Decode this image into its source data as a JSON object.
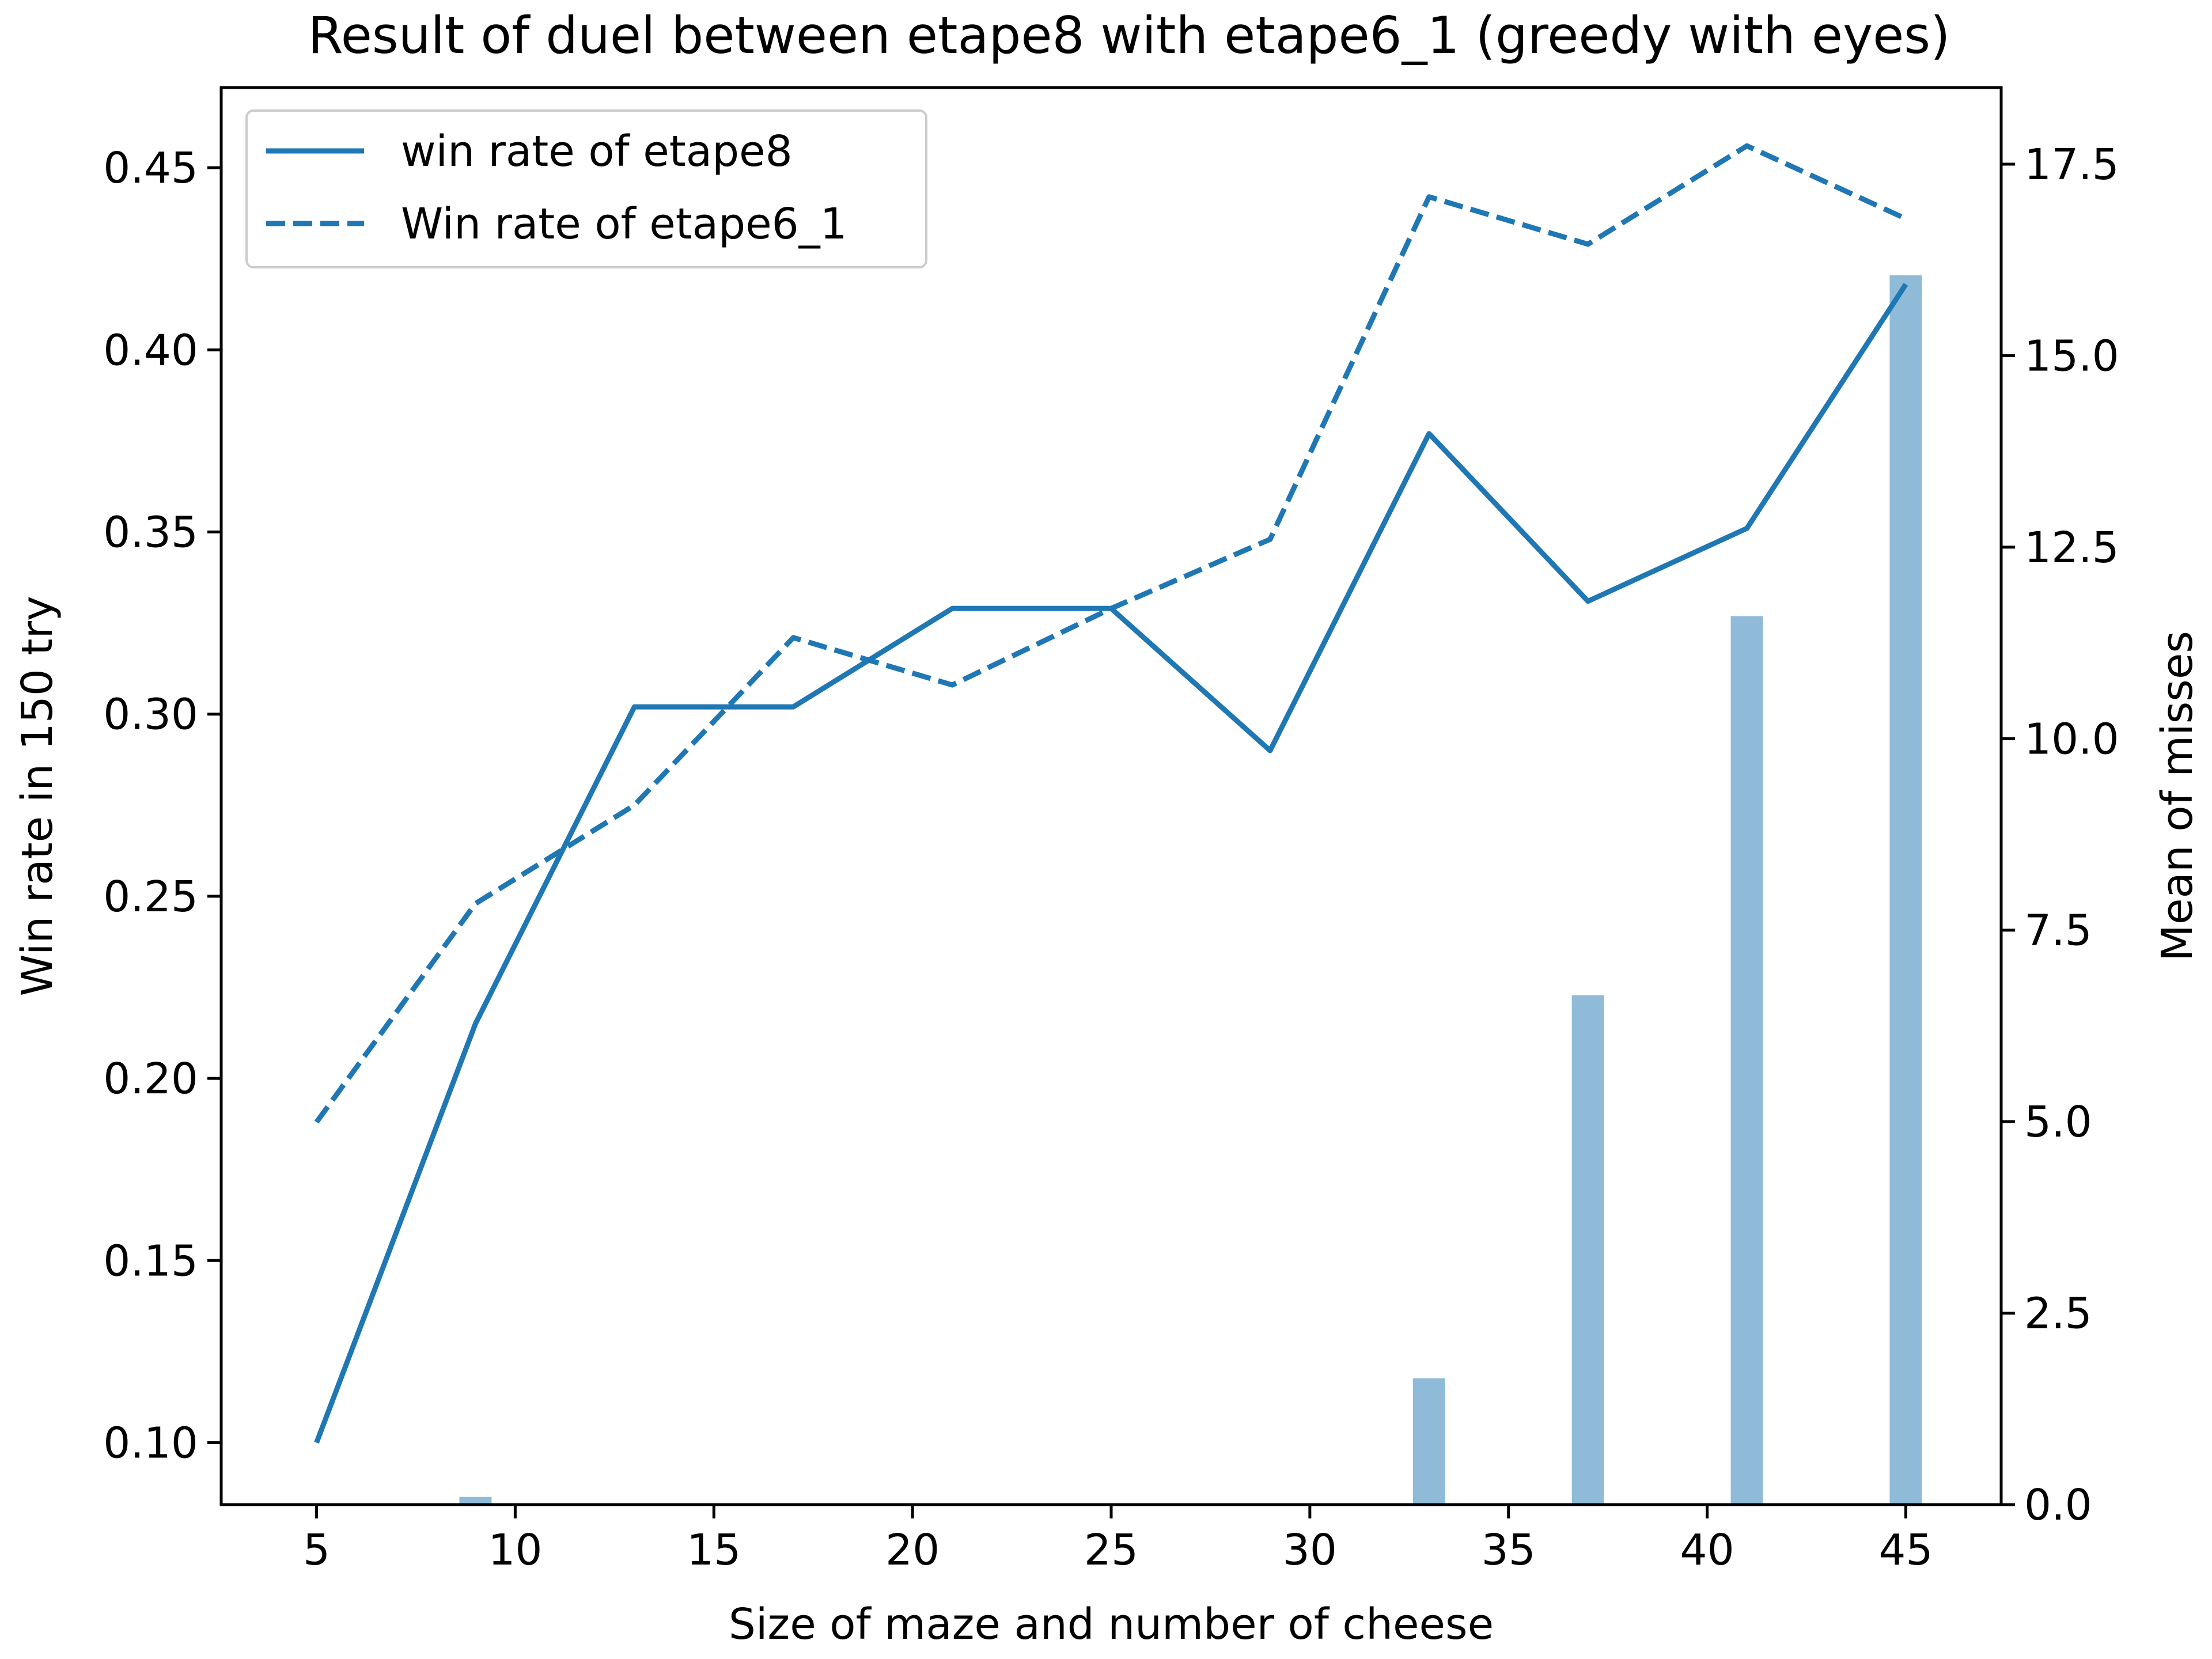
{
  "chart_data": {
    "type": "line",
    "title": "Result of duel between etape8 with etape6_1 (greedy with eyes)",
    "xlabel": "Size of maze and number of cheese",
    "ylabel": "Win rate in 150 try",
    "y2label": "Mean of misses",
    "x": [
      5,
      9,
      13,
      17,
      21,
      25,
      29,
      33,
      37,
      41,
      45
    ],
    "xlim": [
      2.6,
      47.4
    ],
    "ylim": [
      0.083,
      0.472
    ],
    "y2lim": [
      0,
      18.5
    ],
    "xticks": [
      5,
      10,
      15,
      20,
      25,
      30,
      35,
      40,
      45
    ],
    "yticks": [
      "0.10",
      "0.15",
      "0.20",
      "0.25",
      "0.30",
      "0.35",
      "0.40",
      "0.45"
    ],
    "y2ticks": [
      "0.0",
      "2.5",
      "5.0",
      "7.5",
      "10.0",
      "12.5",
      "15.0",
      "17.5"
    ],
    "grid": false,
    "legend_position": "upper-left",
    "series": [
      {
        "name": "win rate of etape8",
        "axis": "left",
        "style": "solid",
        "color": "#1f77b4",
        "values": [
          0.1,
          0.215,
          0.302,
          0.302,
          0.329,
          0.329,
          0.29,
          0.377,
          0.331,
          0.351,
          0.418
        ]
      },
      {
        "name": "Win rate of etape6_1",
        "axis": "left",
        "style": "dashed",
        "color": "#1f77b4",
        "values": [
          0.188,
          0.248,
          0.275,
          0.321,
          0.308,
          0.329,
          0.348,
          0.442,
          0.429,
          0.456,
          0.436
        ]
      }
    ],
    "bars": {
      "axis": "right",
      "color": "#1f77b4",
      "opacity": 0.5,
      "x": [
        5,
        9,
        13,
        17,
        21,
        25,
        29,
        33,
        37,
        41,
        45
      ],
      "values": [
        0,
        0.1,
        0,
        0,
        0,
        0,
        0,
        1.65,
        6.65,
        11.6,
        16.05
      ]
    }
  }
}
